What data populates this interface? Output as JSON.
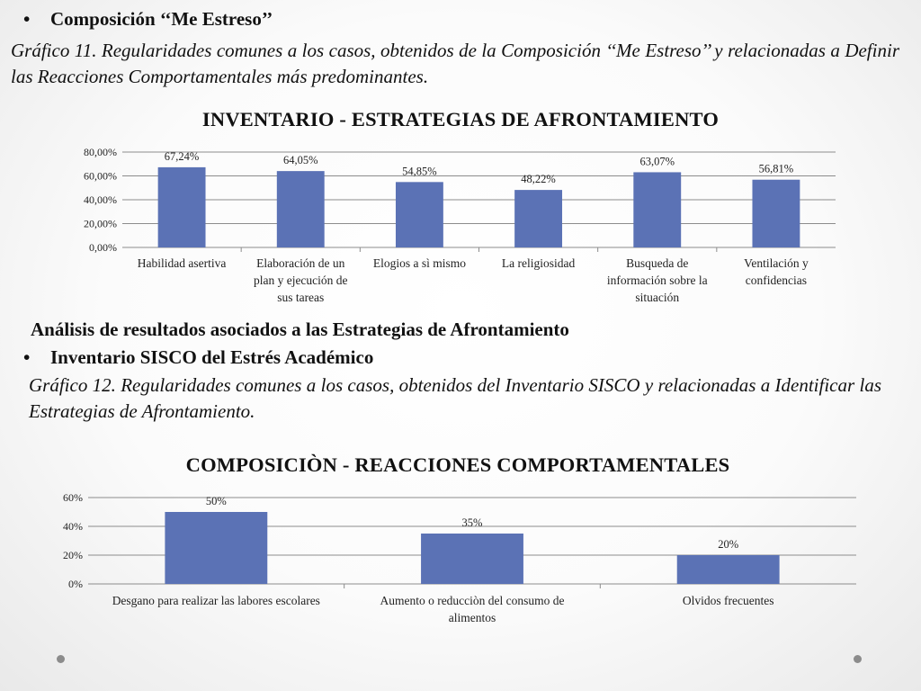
{
  "section1": {
    "bullet": "Composición ‘‘Me Estreso’’",
    "caption": "Gráfico 11. Regularidades comunes a los casos, obtenidos de la Composición ‘‘Me Estreso’’ y relacionadas a Definir las Reacciones Comportamentales más predominantes."
  },
  "section2": {
    "heading": "Análisis de resultados asociados a las Estrategias de Afrontamiento",
    "bullet": "Inventario SISCO del Estrés Académico",
    "caption": "Gráfico 12. Regularidades comunes a los casos, obtenidos del Inventario SISCO y relacionadas a Identificar las Estrategias de Afrontamiento."
  },
  "chart_data": [
    {
      "type": "bar",
      "title": "INVENTARIO - ESTRATEGIAS DE AFRONTAMIENTO",
      "categories": [
        [
          "Habilidad asertiva"
        ],
        [
          "Elaboración de un",
          "plan y ejecución de",
          "sus tareas"
        ],
        [
          "Elogios a sì mismo"
        ],
        [
          "La religiosidad"
        ],
        [
          "Busqueda de",
          "información sobre la",
          "situación"
        ],
        [
          "Ventilación y",
          "confidencias"
        ]
      ],
      "values": [
        67.24,
        64.05,
        54.85,
        48.22,
        63.07,
        56.81
      ],
      "data_labels": [
        "67,24%",
        "64,05%",
        "54,85%",
        "48,22%",
        "63,07%",
        "56,81%"
      ],
      "yticks": [
        "0,00%",
        "20,00%",
        "40,00%",
        "60,00%",
        "80,00%"
      ],
      "ylim": [
        0,
        80
      ],
      "grid": true,
      "bar_color": "#5b72b5"
    },
    {
      "type": "bar",
      "title": "COMPOSICIÒN - REACCIONES COMPORTAMENTALES",
      "categories": [
        [
          "Desgano para realizar las labores escolares"
        ],
        [
          "Aumento o reducciòn del consumo de",
          "alimentos"
        ],
        [
          "Olvidos frecuentes"
        ]
      ],
      "values": [
        50,
        35,
        20
      ],
      "data_labels": [
        "50%",
        "35%",
        "20%"
      ],
      "yticks": [
        "0%",
        "20%",
        "40%",
        "60%"
      ],
      "ylim": [
        0,
        60
      ],
      "grid": true,
      "bar_color": "#5b72b5"
    }
  ],
  "colors": {
    "bar": "#5b72b5",
    "grid": "#8c8c8c",
    "nav_dot": "#8c8c8c"
  },
  "nav_icons": [
    "nav-dot-icon",
    "nav-dot-icon"
  ]
}
